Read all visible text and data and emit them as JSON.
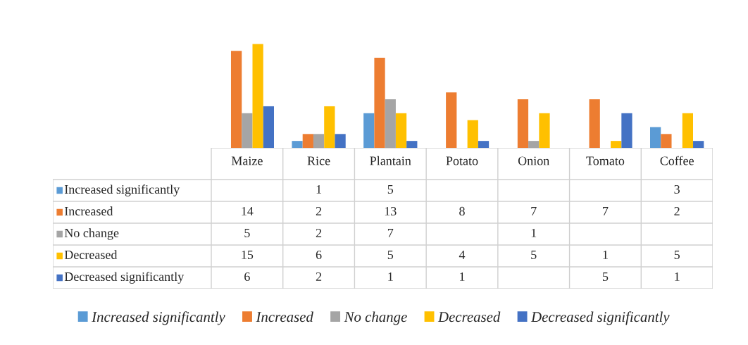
{
  "chart_data": {
    "type": "bar",
    "categories": [
      "Maize",
      "Rice",
      "Plantain",
      "Potato",
      "Onion",
      "Tomato",
      "Coffee"
    ],
    "series": [
      {
        "name": "Increased significantly",
        "color": "#5b9bd5",
        "values": [
          null,
          1,
          5,
          null,
          null,
          null,
          3
        ]
      },
      {
        "name": "Increased",
        "color": "#ed7d31",
        "values": [
          14,
          2,
          13,
          8,
          7,
          7,
          2
        ]
      },
      {
        "name": "No change",
        "color": "#a5a5a5",
        "values": [
          5,
          2,
          7,
          null,
          1,
          null,
          null
        ]
      },
      {
        "name": "Decreased",
        "color": "#ffc000",
        "values": [
          15,
          6,
          5,
          4,
          5,
          1,
          5
        ]
      },
      {
        "name": "Decreased significantly",
        "color": "#4472c4",
        "values": [
          6,
          2,
          1,
          1,
          null,
          5,
          1
        ]
      }
    ],
    "data_labels": true,
    "legend": "bottom"
  }
}
